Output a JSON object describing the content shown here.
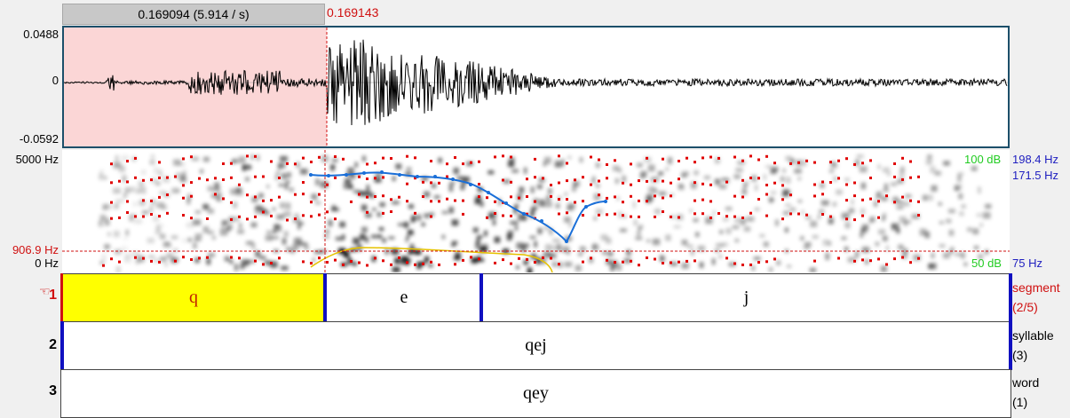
{
  "selection": {
    "duration_label": "0.169094 (5.914 / s)"
  },
  "cursor": {
    "time_label": "0.169143"
  },
  "waveform": {
    "max_label": "0.0488",
    "zero_label": "0",
    "min_label": "-0.0592"
  },
  "spectrogram": {
    "max_freq_label": "5000 Hz",
    "cursor_freq_label": "906.9 Hz",
    "min_freq_label": "0 Hz",
    "intensity_max_label": "100 dB",
    "intensity_min_label": "50 dB",
    "pitch_max_label": "198.4 Hz",
    "pitch_cursor_label": "171.5 Hz",
    "pitch_min_label": "75 Hz"
  },
  "tiers": [
    {
      "number": "1",
      "name": "segment",
      "count": "(2/5)",
      "intervals": [
        {
          "text": "q"
        },
        {
          "text": "e"
        },
        {
          "text": "j"
        }
      ]
    },
    {
      "number": "2",
      "name": "syllable",
      "count": "(3)",
      "intervals": [
        {
          "text": "qej"
        }
      ]
    },
    {
      "number": "3",
      "name": "word",
      "count": "(1)",
      "intervals": [
        {
          "text": "qey"
        }
      ]
    }
  ],
  "colors": {
    "selection": "#fbd6d6",
    "cursor": "#d01010",
    "selected_interval": "#ffff00",
    "pitch": "#1a6fd8",
    "intensity": "#e6c200",
    "formant": "#e00000",
    "intensity_axis": "#22cc22",
    "pitch_axis": "#2020c0"
  },
  "icons": {
    "tier_pointer": "pointer-hand-icon"
  }
}
